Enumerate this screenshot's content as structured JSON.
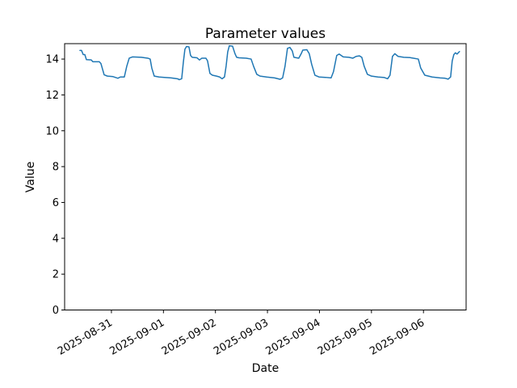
{
  "window": {
    "background": "#ffffff"
  },
  "chart_data": {
    "type": "line",
    "title": "Parameter values",
    "xlabel": "Date",
    "ylabel": "Value",
    "x_unit": "days since 2025-08-31 00:00",
    "x_tick_offsets": [
      0,
      1,
      2,
      3,
      4,
      5,
      6
    ],
    "x_tick_labels": [
      "2025-08-31",
      "2025-09-01",
      "2025-09-02",
      "2025-09-03",
      "2025-09-04",
      "2025-09-05",
      "2025-09-06"
    ],
    "x_tick_rotation": -30,
    "y_ticks": [
      0,
      2,
      4,
      6,
      8,
      10,
      12,
      14
    ],
    "xlim": [
      -0.9,
      6.82
    ],
    "ylim": [
      0,
      14.86
    ],
    "grid": false,
    "legend": null,
    "line_color": "#1f77b4",
    "axis_color": "#000000",
    "series": [
      {
        "name": "Parameter values",
        "points": [
          [
            -0.606,
            14.48
          ],
          [
            -0.575,
            14.48
          ],
          [
            -0.543,
            14.25
          ],
          [
            -0.512,
            14.25
          ],
          [
            -0.481,
            13.97
          ],
          [
            -0.388,
            13.95
          ],
          [
            -0.357,
            13.85
          ],
          [
            -0.233,
            13.85
          ],
          [
            -0.202,
            13.75
          ],
          [
            -0.14,
            13.12
          ],
          [
            -0.078,
            13.05
          ],
          [
            0.031,
            13.02
          ],
          [
            0.124,
            12.93
          ],
          [
            0.171,
            13.0
          ],
          [
            0.248,
            13.0
          ],
          [
            0.295,
            13.6
          ],
          [
            0.342,
            14.05
          ],
          [
            0.404,
            14.12
          ],
          [
            0.575,
            14.1
          ],
          [
            0.699,
            14.05
          ],
          [
            0.745,
            14.0
          ],
          [
            0.776,
            13.5
          ],
          [
            0.823,
            13.05
          ],
          [
            0.916,
            13.0
          ],
          [
            1.04,
            12.97
          ],
          [
            1.149,
            12.95
          ],
          [
            1.273,
            12.9
          ],
          [
            1.304,
            12.85
          ],
          [
            1.351,
            12.9
          ],
          [
            1.382,
            13.8
          ],
          [
            1.413,
            14.55
          ],
          [
            1.444,
            14.7
          ],
          [
            1.491,
            14.68
          ],
          [
            1.522,
            14.2
          ],
          [
            1.553,
            14.1
          ],
          [
            1.646,
            14.07
          ],
          [
            1.693,
            13.95
          ],
          [
            1.739,
            14.05
          ],
          [
            1.817,
            14.05
          ],
          [
            1.848,
            13.9
          ],
          [
            1.894,
            13.2
          ],
          [
            1.941,
            13.1
          ],
          [
            2.019,
            13.05
          ],
          [
            2.081,
            13.0
          ],
          [
            2.127,
            12.9
          ],
          [
            2.174,
            13.0
          ],
          [
            2.205,
            13.6
          ],
          [
            2.236,
            14.4
          ],
          [
            2.267,
            14.74
          ],
          [
            2.329,
            14.72
          ],
          [
            2.376,
            14.3
          ],
          [
            2.407,
            14.1
          ],
          [
            2.453,
            14.07
          ],
          [
            2.593,
            14.05
          ],
          [
            2.686,
            14.0
          ],
          [
            2.733,
            13.6
          ],
          [
            2.795,
            13.15
          ],
          [
            2.857,
            13.05
          ],
          [
            2.981,
            13.0
          ],
          [
            3.137,
            12.95
          ],
          [
            3.245,
            12.87
          ],
          [
            3.292,
            12.95
          ],
          [
            3.338,
            13.6
          ],
          [
            3.385,
            14.6
          ],
          [
            3.432,
            14.65
          ],
          [
            3.478,
            14.45
          ],
          [
            3.509,
            14.1
          ],
          [
            3.602,
            14.05
          ],
          [
            3.649,
            14.3
          ],
          [
            3.68,
            14.5
          ],
          [
            3.758,
            14.52
          ],
          [
            3.804,
            14.3
          ],
          [
            3.851,
            13.7
          ],
          [
            3.913,
            13.1
          ],
          [
            3.991,
            13.0
          ],
          [
            4.115,
            12.98
          ],
          [
            4.224,
            12.95
          ],
          [
            4.27,
            13.3
          ],
          [
            4.332,
            14.2
          ],
          [
            4.379,
            14.28
          ],
          [
            4.457,
            14.12
          ],
          [
            4.565,
            14.1
          ],
          [
            4.643,
            14.05
          ],
          [
            4.705,
            14.15
          ],
          [
            4.767,
            14.18
          ],
          [
            4.814,
            14.1
          ],
          [
            4.86,
            13.6
          ],
          [
            4.922,
            13.15
          ],
          [
            5.0,
            13.05
          ],
          [
            5.124,
            13.0
          ],
          [
            5.248,
            12.97
          ],
          [
            5.311,
            12.9
          ],
          [
            5.357,
            13.1
          ],
          [
            5.404,
            14.15
          ],
          [
            5.45,
            14.3
          ],
          [
            5.512,
            14.15
          ],
          [
            5.621,
            14.1
          ],
          [
            5.745,
            14.08
          ],
          [
            5.807,
            14.05
          ],
          [
            5.901,
            14.0
          ],
          [
            5.947,
            13.5
          ],
          [
            6.025,
            13.1
          ],
          [
            6.165,
            13.0
          ],
          [
            6.32,
            12.95
          ],
          [
            6.413,
            12.93
          ],
          [
            6.475,
            12.88
          ],
          [
            6.522,
            13.0
          ],
          [
            6.553,
            13.9
          ],
          [
            6.584,
            14.25
          ],
          [
            6.615,
            14.35
          ],
          [
            6.646,
            14.28
          ],
          [
            6.693,
            14.42
          ]
        ]
      }
    ]
  }
}
